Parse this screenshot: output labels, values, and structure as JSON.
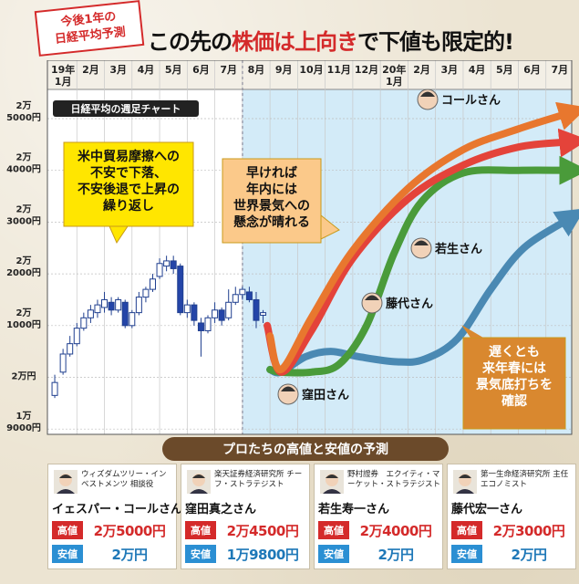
{
  "stamp": {
    "line1": "今後1年の",
    "line2": "日経平均予測"
  },
  "headline": {
    "part1": "この先の",
    "part2": "株価は上向き",
    "part3": "で下値も限定的!"
  },
  "chart_data": {
    "type": "line",
    "title": "日経平均の週足チャート",
    "ylabel": "",
    "xlabel": "",
    "ylim": [
      19000,
      25500
    ],
    "y_ticks": [
      {
        "value": 25000,
        "man": "2万",
        "rest": "5000円"
      },
      {
        "value": 24000,
        "man": "2万",
        "rest": "4000円"
      },
      {
        "value": 23000,
        "man": "2万",
        "rest": "3000円"
      },
      {
        "value": 22000,
        "man": "2万",
        "rest": "2000円"
      },
      {
        "value": 21000,
        "man": "2万",
        "rest": "1000円"
      },
      {
        "value": 20000,
        "man": "",
        "rest": "2万円"
      },
      {
        "value": 19000,
        "man": "1万",
        "rest": "9000円"
      }
    ],
    "x_ticks": [
      {
        "top": "19年",
        "bottom": "1月"
      },
      {
        "top": "2月",
        "bottom": ""
      },
      {
        "top": "3月",
        "bottom": ""
      },
      {
        "top": "4月",
        "bottom": ""
      },
      {
        "top": "5月",
        "bottom": ""
      },
      {
        "top": "6月",
        "bottom": ""
      },
      {
        "top": "7月",
        "bottom": ""
      },
      {
        "top": "8月",
        "bottom": ""
      },
      {
        "top": "9月",
        "bottom": ""
      },
      {
        "top": "10月",
        "bottom": ""
      },
      {
        "top": "11月",
        "bottom": ""
      },
      {
        "top": "12月",
        "bottom": ""
      },
      {
        "top": "20年",
        "bottom": "1月"
      },
      {
        "top": "2月",
        "bottom": ""
      },
      {
        "top": "3月",
        "bottom": ""
      },
      {
        "top": "4月",
        "bottom": ""
      },
      {
        "top": "5月",
        "bottom": ""
      },
      {
        "top": "6月",
        "bottom": ""
      },
      {
        "top": "7月",
        "bottom": ""
      }
    ],
    "candles": [
      [
        0.2,
        19650,
        19900,
        19600,
        20050
      ],
      [
        0.5,
        20100,
        20450,
        20050,
        20550
      ],
      [
        0.75,
        20450,
        20650,
        20400,
        20800
      ],
      [
        1.0,
        20650,
        20950,
        20600,
        21050
      ],
      [
        1.25,
        20950,
        21150,
        20900,
        21250
      ],
      [
        1.5,
        21150,
        21300,
        21050,
        21400
      ],
      [
        1.75,
        21250,
        21400,
        21150,
        21500
      ],
      [
        2.0,
        21350,
        21500,
        21250,
        21650
      ],
      [
        2.25,
        21450,
        21300,
        21200,
        21550
      ],
      [
        2.5,
        21300,
        21500,
        21250,
        21550
      ],
      [
        2.75,
        21450,
        21000,
        20950,
        21500
      ],
      [
        3.0,
        21000,
        21250,
        20950,
        21300
      ],
      [
        3.25,
        21250,
        21550,
        21200,
        21650
      ],
      [
        3.5,
        21550,
        21700,
        21450,
        21750
      ],
      [
        3.75,
        21700,
        21900,
        21650,
        22000
      ],
      [
        4.0,
        21950,
        22200,
        21900,
        22300
      ],
      [
        4.25,
        22150,
        22250,
        22050,
        22350
      ],
      [
        4.5,
        22250,
        22100,
        22000,
        22350
      ],
      [
        4.75,
        22150,
        21250,
        21200,
        22200
      ],
      [
        5.0,
        21250,
        21400,
        21150,
        21500
      ],
      [
        5.25,
        21400,
        21100,
        21000,
        21450
      ],
      [
        5.5,
        21050,
        20900,
        20400,
        21150
      ],
      [
        5.75,
        20900,
        21150,
        20850,
        21200
      ],
      [
        6.0,
        21150,
        21300,
        21050,
        21450
      ],
      [
        6.25,
        21300,
        21100,
        21000,
        21350
      ],
      [
        6.5,
        21150,
        21450,
        21100,
        21700
      ],
      [
        6.75,
        21450,
        21600,
        21400,
        21750
      ],
      [
        7.0,
        21600,
        21700,
        21500,
        21750
      ],
      [
        7.25,
        21650,
        21500,
        21450,
        21750
      ],
      [
        7.5,
        21500,
        21100,
        20950,
        21650
      ],
      [
        7.75,
        21200,
        21250,
        21050,
        21300
      ]
    ],
    "series": [
      {
        "name": "コールさん",
        "color": "#e8772e",
        "x": [
          8.0,
          8.4,
          9.5,
          11.0,
          13.0,
          15.0,
          17.0,
          18.8
        ],
        "values": [
          20800,
          20150,
          21150,
          22450,
          23650,
          24400,
          24800,
          25100
        ]
      },
      {
        "name": "窪田さん",
        "color": "#e4433a",
        "x": [
          7.9,
          8.4,
          9.5,
          11.0,
          13.0,
          15.0,
          17.0,
          18.8
        ],
        "values": [
          21000,
          20100,
          20900,
          22300,
          23450,
          24100,
          24450,
          24550
        ]
      },
      {
        "name": "若生さん",
        "color": "#4a9b3a",
        "x": [
          8.0,
          8.4,
          9.5,
          10.5,
          11.5,
          12.5,
          13.5,
          15.0,
          17.0,
          18.8
        ],
        "values": [
          20150,
          20100,
          20100,
          20250,
          21000,
          22400,
          23400,
          23950,
          24000,
          24000
        ]
      },
      {
        "name": "藤代さん",
        "color": "#4a89b3",
        "x": [
          8.0,
          8.4,
          9.3,
          10.2,
          11.2,
          12.6,
          13.6,
          14.8,
          16.0,
          17.2,
          18.8
        ],
        "values": [
          20150,
          20100,
          20400,
          20500,
          20400,
          20300,
          20350,
          20750,
          21700,
          22500,
          23050
        ]
      }
    ],
    "annotations": [
      {
        "lines": [
          "米中貿易摩擦への",
          "不安で下落、",
          "不安後退で上昇の",
          "繰り返し"
        ]
      },
      {
        "lines": [
          "早ければ",
          "年内には",
          "世界景気への",
          "懸念が晴れる"
        ]
      },
      {
        "lines": [
          "遅くとも",
          "来年春には",
          "景気底打ちを",
          "確認"
        ]
      }
    ],
    "person_labels": [
      "コールさん",
      "若生さん",
      "藤代さん",
      "窪田さん"
    ]
  },
  "pro_title": "プロたちの高値と安値の予測",
  "panels": [
    {
      "role": "ウィズダムツリー・インベストメンツ 相談役",
      "name": "イェスパー・コールさん",
      "high_label": "高値",
      "high": "2万5000円",
      "low_label": "安値",
      "low": "2万円"
    },
    {
      "role": "楽天証券経済研究所 チーフ・ストラテジスト",
      "name": "窪田真之さん",
      "high_label": "高値",
      "high": "2万4500円",
      "low_label": "安値",
      "low": "1万9800円"
    },
    {
      "role": "野村證券　エクイティ・マーケット・ストラテジスト",
      "name": "若生寿一さん",
      "high_label": "高値",
      "high": "2万4000円",
      "low_label": "安値",
      "low": "2万円"
    },
    {
      "role": "第一生命経済研究所 主任エコノミスト",
      "name": "藤代宏一さん",
      "high_label": "高値",
      "high": "2万3000円",
      "low_label": "安値",
      "low": "2万円"
    }
  ]
}
